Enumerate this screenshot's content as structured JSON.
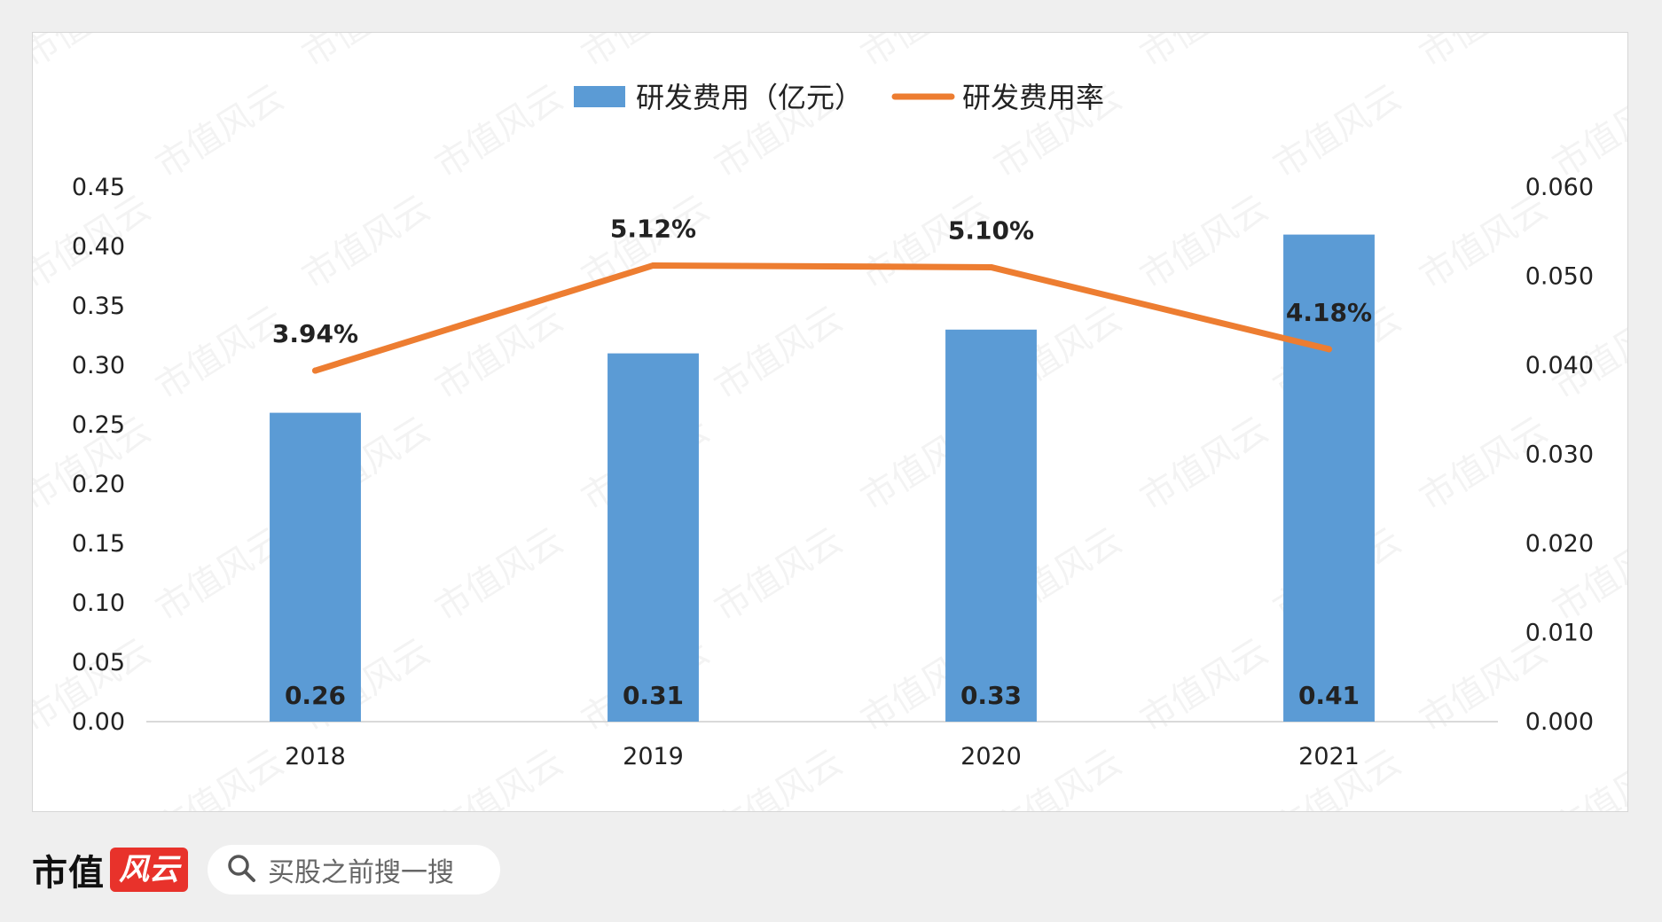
{
  "colors": {
    "bar": "#5b9bd5",
    "line": "#ed7d31",
    "axis": "#d9d9d9",
    "text": "#222222"
  },
  "chart_data": {
    "type": "bar",
    "categories": [
      "2018",
      "2019",
      "2020",
      "2021"
    ],
    "series": [
      {
        "name": "研发费用（亿元）",
        "type": "bar",
        "axis": "left",
        "values": [
          0.26,
          0.31,
          0.33,
          0.41
        ],
        "labels": [
          "0.26",
          "0.31",
          "0.33",
          "0.41"
        ]
      },
      {
        "name": "研发费用率",
        "type": "line",
        "axis": "right",
        "values": [
          0.0394,
          0.0512,
          0.051,
          0.0418
        ],
        "labels": [
          "3.94%",
          "5.12%",
          "5.10%",
          "4.18%"
        ]
      }
    ],
    "y_left": {
      "ylim": [
        0,
        0.45
      ],
      "ticks": [
        "0.00",
        "0.05",
        "0.10",
        "0.15",
        "0.20",
        "0.25",
        "0.30",
        "0.35",
        "0.40",
        "0.45"
      ]
    },
    "y_right": {
      "ylim": [
        0,
        0.06
      ],
      "ticks": [
        "0.000",
        "0.010",
        "0.020",
        "0.030",
        "0.040",
        "0.050",
        "0.060"
      ]
    },
    "legend": "top-center",
    "grid": false
  },
  "watermark": "市值风云",
  "footer": {
    "brand": "市值",
    "brand_badge": "风云",
    "search_placeholder": "买股之前搜一搜",
    "search_icon": "search-icon"
  }
}
